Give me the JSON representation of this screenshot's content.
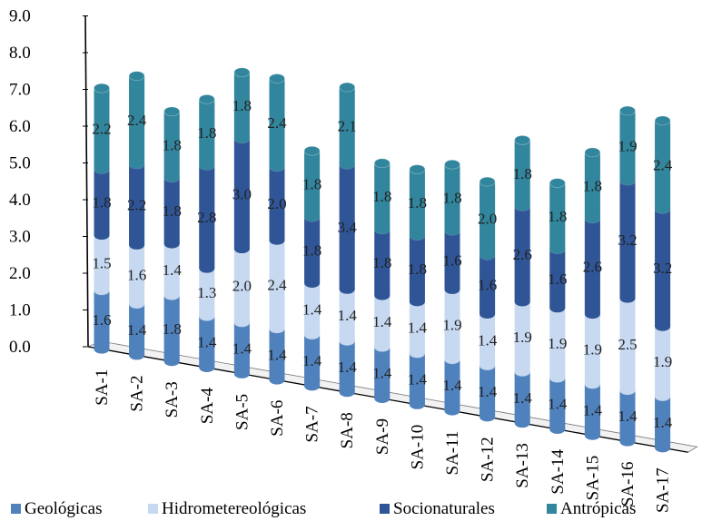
{
  "chart_data": {
    "type": "bar",
    "stacked": true,
    "three_d": true,
    "categories": [
      "SA-1",
      "SA-2",
      "SA-3",
      "SA-4",
      "SA-5",
      "SA-6",
      "SA-7",
      "SA-8",
      "SA-9",
      "SA-10",
      "SA-11",
      "SA-12",
      "SA-13",
      "SA-14",
      "SA-15",
      "SA-16",
      "SA-17"
    ],
    "series": [
      {
        "name": "Geológicas",
        "color": "#4f81bd",
        "values": [
          1.6,
          1.4,
          1.8,
          1.4,
          1.4,
          1.4,
          1.4,
          1.4,
          1.4,
          1.4,
          1.4,
          1.4,
          1.4,
          1.4,
          1.4,
          1.4,
          1.4
        ]
      },
      {
        "name": "Hidrometereológicas",
        "color": "#c6d9f1",
        "values": [
          1.5,
          1.6,
          1.4,
          1.3,
          2.0,
          2.4,
          1.4,
          1.4,
          1.4,
          1.4,
          1.9,
          1.4,
          1.9,
          1.9,
          1.9,
          2.5,
          1.9
        ]
      },
      {
        "name": "Socionaturales",
        "color": "#2f5597",
        "values": [
          1.8,
          2.2,
          1.8,
          2.8,
          3.0,
          2.0,
          1.8,
          3.4,
          1.8,
          1.8,
          1.6,
          1.6,
          2.6,
          1.6,
          2.6,
          3.2,
          3.2
        ]
      },
      {
        "name": "Antrópicas",
        "color": "#31859c",
        "values": [
          2.2,
          2.4,
          1.8,
          1.8,
          1.8,
          2.4,
          1.8,
          2.1,
          1.8,
          1.8,
          1.8,
          2.0,
          1.8,
          1.8,
          1.8,
          1.9,
          2.4
        ]
      }
    ],
    "y_ticks": [
      "0.0",
      "1.0",
      "2.0",
      "3.0",
      "4.0",
      "5.0",
      "6.0",
      "7.0",
      "8.0",
      "9.0"
    ],
    "ylim": [
      0,
      9
    ],
    "legend_position": "bottom",
    "title": "",
    "xlabel": "",
    "ylabel": ""
  }
}
